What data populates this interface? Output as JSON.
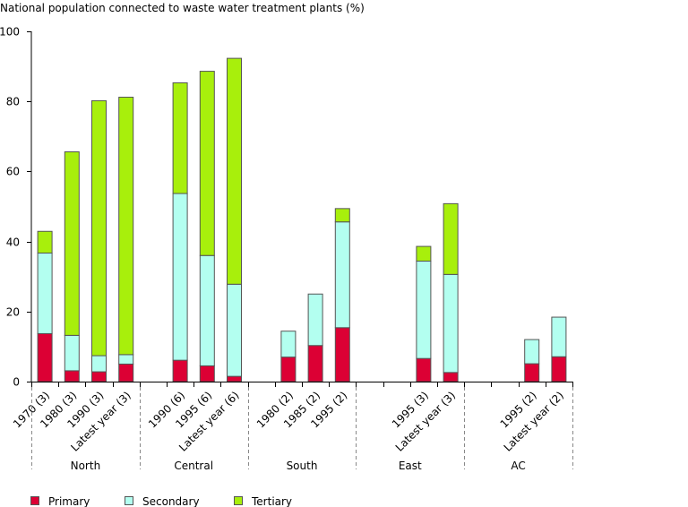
{
  "chart_data": {
    "type": "bar",
    "stacked": true,
    "title": "National population connected to waste water treatment plants (%)",
    "xlabel": "",
    "ylabel": "",
    "ylim": [
      0,
      100
    ],
    "yticks": [
      0,
      20,
      40,
      60,
      80,
      100
    ],
    "grid": false,
    "legend_position": "bottom-left",
    "colors": {
      "Primary": "#dc0034",
      "Secondary": "#b3fff0",
      "Tertiary": "#a8ef0c"
    },
    "groups": [
      {
        "name": "North",
        "slots": [
          "1970 (3)",
          "1980 (3)",
          "1990 (3)",
          "Latest year (3)"
        ]
      },
      {
        "name": "Central",
        "slots": [
          "",
          "1990 (6)",
          "1995 (6)",
          "Latest year (6)"
        ]
      },
      {
        "name": "South",
        "slots": [
          "",
          "1980 (2)",
          "1985 (2)",
          "1995 (2)"
        ]
      },
      {
        "name": "East",
        "slots": [
          "",
          "",
          "1995 (3)",
          "Latest year (3)"
        ]
      },
      {
        "name": "AC",
        "slots": [
          "",
          "",
          "1995 (2)",
          "Latest year (2)"
        ]
      }
    ],
    "categories": [
      "1970 (3)",
      "1980 (3)",
      "1990 (3)",
      "Latest year (3)",
      "",
      "1990 (6)",
      "1995 (6)",
      "Latest year (6)",
      "",
      "1980 (2)",
      "1985 (2)",
      "1995 (2)",
      "",
      "",
      "1995 (3)",
      "Latest year (3)",
      "",
      "",
      "1995 (2)",
      "Latest year (2)"
    ],
    "series": [
      {
        "name": "Primary",
        "values": [
          13.7,
          3.1,
          2.8,
          5.0,
          null,
          6.1,
          4.5,
          1.5,
          null,
          7.0,
          10.3,
          15.4,
          null,
          null,
          6.6,
          2.6,
          null,
          null,
          5.1,
          7.1
        ]
      },
      {
        "name": "Secondary",
        "values": [
          23.0,
          10.1,
          4.6,
          2.7,
          null,
          47.6,
          31.5,
          26.3,
          null,
          7.4,
          14.7,
          30.2,
          null,
          null,
          27.8,
          28.0,
          null,
          null,
          6.9,
          11.3
        ]
      },
      {
        "name": "Tertiary",
        "values": [
          6.2,
          52.4,
          72.8,
          73.5,
          null,
          31.6,
          52.6,
          64.5,
          null,
          0,
          0,
          3.8,
          null,
          null,
          4.2,
          20.2,
          null,
          null,
          0,
          0
        ]
      }
    ],
    "legend": [
      "Primary",
      "Secondary",
      "Tertiary"
    ]
  }
}
